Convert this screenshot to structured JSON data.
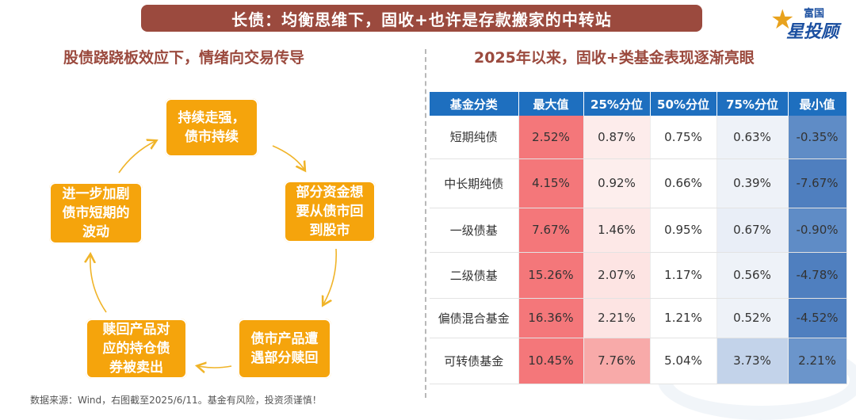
{
  "banner": {
    "title": "长债：均衡思维下，固收+也许是存款搬家的中转站"
  },
  "logo": {
    "top_text": "富国",
    "bottom_text": "星投顾",
    "colors": {
      "blue": "#1b4fa0",
      "gold": "#e8a21d"
    }
  },
  "left": {
    "subtitle": "股债跷跷板效应下，情绪向交易传导",
    "cycle": [
      {
        "lines": [
          "持续走强，",
          "债市持续"
        ]
      },
      {
        "lines": [
          "部分资金想",
          "要从债市回",
          "到股市"
        ]
      },
      {
        "lines": [
          "债市产品遭",
          "遇部分赎回"
        ]
      },
      {
        "lines": [
          "赎回产品对",
          "应的持仓债",
          "券被卖出"
        ]
      },
      {
        "lines": [
          "进一步加剧",
          "债市短期的",
          "波动"
        ]
      }
    ]
  },
  "right": {
    "subtitle": "2025年以来，固收+类基金表现逐渐亮眼",
    "table": {
      "headers": [
        "基金分类",
        "最大值",
        "25%分位",
        "50%分位",
        "75%分位",
        "最小值"
      ],
      "rows": [
        {
          "cells": [
            "短期纯债",
            "2.52%",
            "0.87%",
            "0.75%",
            "0.63%",
            "-0.35%"
          ],
          "colors": [
            "#ffffff",
            "#f4777a",
            "#fdeceb",
            "#ffffff",
            "#eef2f8",
            "#5f8cc6"
          ]
        },
        {
          "cells": [
            "中长期纯债",
            "4.15%",
            "0.92%",
            "0.66%",
            "0.39%",
            "-7.67%"
          ],
          "colors": [
            "#ffffff",
            "#f4777a",
            "#fdeeed",
            "#ffffff",
            "#eef2f8",
            "#4f7fbf"
          ]
        },
        {
          "cells": [
            "一级债基",
            "7.67%",
            "1.46%",
            "0.95%",
            "0.67%",
            "-0.90%"
          ],
          "colors": [
            "#ffffff",
            "#f4777a",
            "#fde8e7",
            "#ffffff",
            "#e9eef7",
            "#5f8cc6"
          ]
        },
        {
          "cells": [
            "二级债基",
            "15.26%",
            "2.07%",
            "1.17%",
            "0.56%",
            "-4.78%"
          ],
          "colors": [
            "#ffffff",
            "#f4777a",
            "#fde4e3",
            "#ffffff",
            "#eef2f8",
            "#4f7fbf"
          ]
        },
        {
          "cells": [
            "偏债混合基金",
            "16.36%",
            "2.21%",
            "1.21%",
            "0.52%",
            "-4.52%"
          ],
          "colors": [
            "#ffffff",
            "#f4777a",
            "#fde4e3",
            "#ffffff",
            "#eef2f8",
            "#4f7fbf"
          ]
        },
        {
          "cells": [
            "可转债基金",
            "10.45%",
            "7.76%",
            "5.04%",
            "3.73%",
            "2.21%"
          ],
          "colors": [
            "#ffffff",
            "#f4777a",
            "#f8aaa9",
            "#ffffff",
            "#c3d3ea",
            "#6b95cb"
          ]
        }
      ]
    }
  },
  "source": "数据来源：Wind，右图截至2025/6/11。基金有风险，投资须谨慎！",
  "colors": {
    "banner": "#9b4a3e",
    "node": "#f5a40c",
    "header": "#1e6fbf",
    "arrow": "#f0b429"
  }
}
